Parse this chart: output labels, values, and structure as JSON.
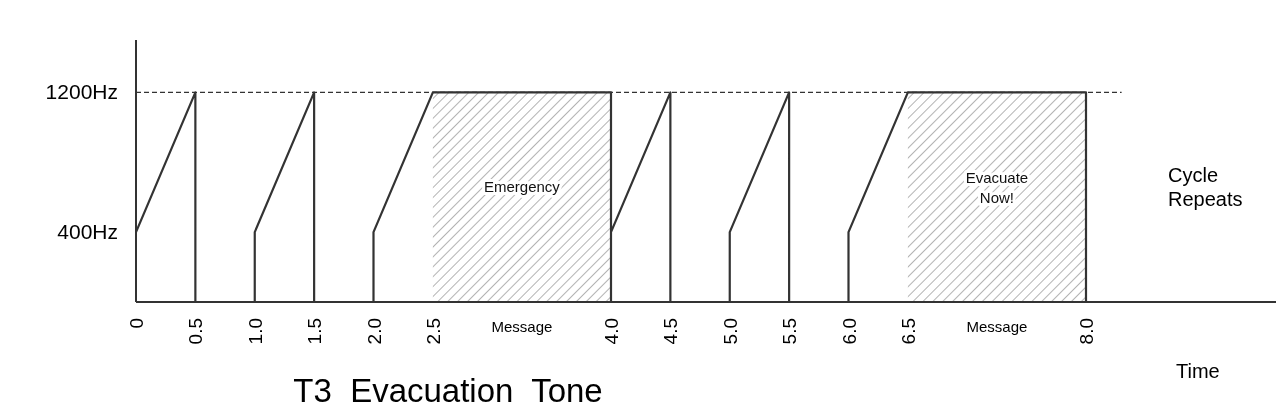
{
  "chart_data": {
    "type": "line",
    "title": "T3  Evacuation  Tone",
    "xlabel": "Time",
    "x": [
      0,
      0.5,
      0.5,
      1.0,
      1.0,
      1.5,
      1.5,
      2.0,
      2.0,
      2.5,
      4.0,
      4.0,
      4.0,
      4.5,
      4.5,
      5.0,
      5.0,
      5.5,
      5.5,
      6.0,
      6.0,
      6.5,
      8.0,
      8.0
    ],
    "series": [
      {
        "color": "#333333",
        "values": [
          400,
          1200,
          0,
          0,
          400,
          1200,
          0,
          0,
          400,
          1200,
          1200,
          0,
          400,
          1200,
          0,
          0,
          400,
          1200,
          0,
          0,
          400,
          1200,
          1200,
          0
        ]
      }
    ],
    "xlim": [
      0,
      9.6
    ],
    "xticks": [
      0,
      0.5,
      {
        "value": 1.0,
        "label": "1.0"
      },
      1.5,
      {
        "value": 2.0,
        "label": "2.0"
      },
      2.5,
      {
        "value": 4.0,
        "label": "4.0"
      },
      4.5,
      {
        "value": 5.0,
        "label": "5.0"
      },
      5.5,
      {
        "value": 6.0,
        "label": "6.0"
      },
      6.5,
      {
        "value": 8.0,
        "label": "8.0"
      }
    ],
    "ylim": [
      0,
      1500
    ],
    "yticks": [
      {
        "value": 400,
        "label": "400Hz"
      },
      {
        "value": 1200,
        "label": "1200Hz"
      }
    ],
    "ref_lines": [
      {
        "axis": "y",
        "value": 1200,
        "line_style": "dashed",
        "color": "#333333"
      }
    ],
    "bands": [
      {
        "axis": "x",
        "from": 2.5,
        "to": 4.0,
        "label": "Emergency",
        "color": "#999999"
      },
      {
        "axis": "x",
        "from": 6.5,
        "to": 8.0,
        "label": "Evacuate Now!",
        "color": "#999999"
      }
    ],
    "annotations": [
      {
        "text": "Message",
        "x": 3.25,
        "y": 0
      },
      {
        "text": "Message",
        "x": 7.25,
        "y": 0
      },
      "Cycle Repeats"
    ],
    "grid": false,
    "marker": "none",
    "line_style": "solid"
  }
}
